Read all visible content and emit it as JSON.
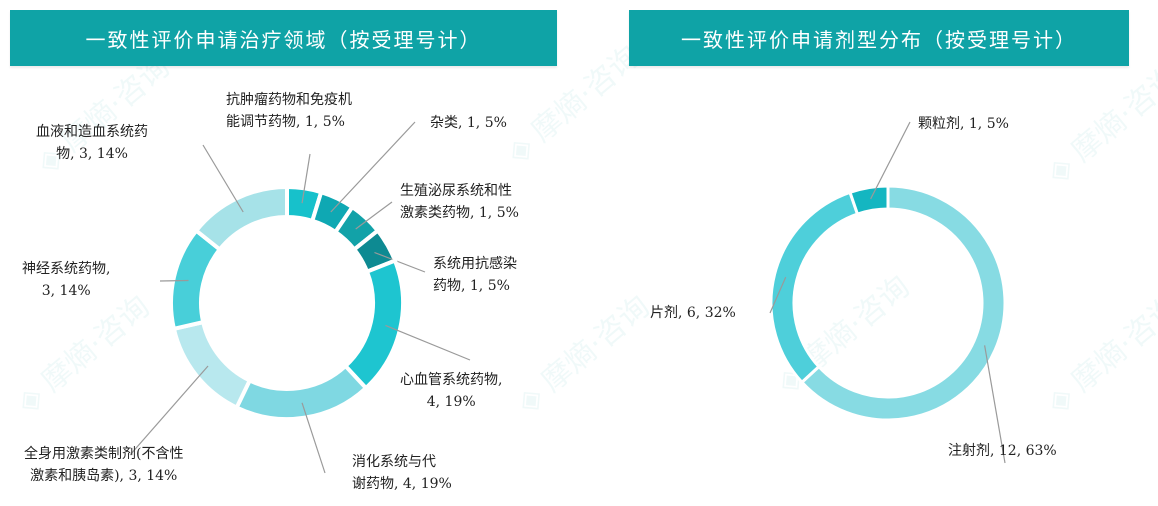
{
  "chart_data": [
    {
      "type": "pie",
      "donut": true,
      "title": "一致性评价申请治疗领域（按受理号计）",
      "slices": [
        {
          "label_lines": [
            "抗肿瘤药物和免疫机",
            "能调节药物, 1, 5%"
          ],
          "value": 1,
          "percent": 5,
          "color": "#17c1cb"
        },
        {
          "label_lines": [
            "杂类, 1, 5%"
          ],
          "value": 1,
          "percent": 5,
          "color": "#0fa8b3"
        },
        {
          "label_lines": [
            "生殖泌尿系统和性",
            "激素类药物, 1, 5%"
          ],
          "value": 1,
          "percent": 5,
          "color": "#12a2a8"
        },
        {
          "label_lines": [
            "系统用抗感染",
            "药物, 1, 5%"
          ],
          "value": 1,
          "percent": 5,
          "color": "#0d8a92"
        },
        {
          "label_lines": [
            "心血管系统药物,",
            "4, 19%"
          ],
          "value": 4,
          "percent": 19,
          "color": "#1ec5d0"
        },
        {
          "label_lines": [
            "消化系统与代",
            "谢药物, 4, 19%"
          ],
          "value": 4,
          "percent": 19,
          "color": "#7fd8e2"
        },
        {
          "label_lines": [
            "全身用激素类制剂(不含性",
            "激素和胰岛素), 3, 14%"
          ],
          "value": 3,
          "percent": 14,
          "color": "#b8e8ee"
        },
        {
          "label_lines": [
            "神经系统药物,",
            "3, 14%"
          ],
          "value": 3,
          "percent": 14,
          "color": "#48cfd9"
        },
        {
          "label_lines": [
            "血液和造血系统药",
            "物, 3, 14%"
          ],
          "value": 3,
          "percent": 14,
          "color": "#a6e2e8"
        }
      ]
    },
    {
      "type": "pie",
      "donut": true,
      "title": "一致性评价申请剂型分布（按受理号计）",
      "slices": [
        {
          "label_lines": [
            "注射剂, 12, 63%"
          ],
          "value": 12,
          "percent": 63,
          "color": "#87dbe3"
        },
        {
          "label_lines": [
            "片剂, 6, 32%"
          ],
          "value": 6,
          "percent": 32,
          "color": "#4ecfda"
        },
        {
          "label_lines": [
            "颗粒剂, 1, 5%"
          ],
          "value": 1,
          "percent": 5,
          "color": "#14b6c1"
        }
      ]
    }
  ]
}
